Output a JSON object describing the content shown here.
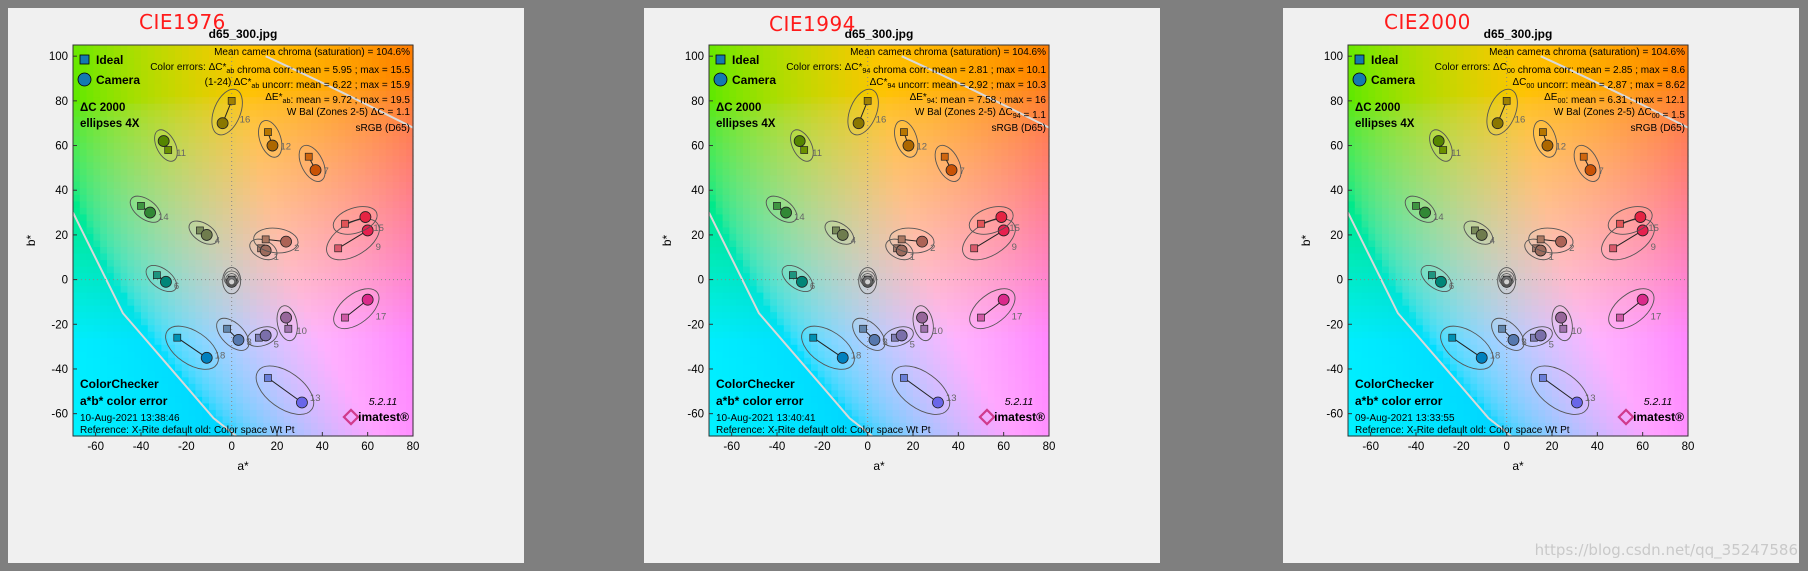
{
  "chart_data": [
    {
      "type": "scatter",
      "method_label": "CIE1976",
      "title": "d65_300.jpg",
      "xlabel": "a*",
      "ylabel": "b*",
      "xlim": [
        -70,
        80
      ],
      "ylim": [
        -70,
        105
      ],
      "xticks": [
        -60,
        -40,
        -20,
        0,
        20,
        40,
        60,
        80
      ],
      "yticks": [
        -60,
        -40,
        -20,
        0,
        20,
        40,
        60,
        80,
        100
      ],
      "legend": [
        {
          "name": "Ideal",
          "marker": "square"
        },
        {
          "name": "Camera",
          "marker": "circle"
        }
      ],
      "subtitle_lines": [
        "ΔC 2000",
        "ellipses 4X"
      ],
      "stats": [
        "Mean camera chroma (saturation) = 104.6%",
        "Color errors: ΔC*ab chroma corr: mean = 5.95 ; max = 15.5",
        "(1-24) ΔC*ab uncorr: mean = 6.22 ; max = 15.9",
        "ΔE*ab: mean = 9.72 ; max = 19.5",
        "W Bal (Zones 2-5) ΔC = 1.1",
        "sRGB (D65)"
      ],
      "bottom_lines": [
        "ColorChecker",
        "a*b* color error",
        "10-Aug-2021 13:38:46",
        "Reference: X-Rite default old: Color space Wt Pt"
      ],
      "version": "5.2.11",
      "logo": "imatest®",
      "patches": [
        {
          "id": "1",
          "ideal": [
            13,
            14
          ],
          "camera": [
            15,
            13
          ]
        },
        {
          "id": "2",
          "ideal": [
            15,
            18
          ],
          "camera": [
            24,
            17
          ]
        },
        {
          "id": "3",
          "ideal": [
            -2,
            -22
          ],
          "camera": [
            3,
            -27
          ]
        },
        {
          "id": "4",
          "ideal": [
            -14,
            22
          ],
          "camera": [
            -11,
            20
          ]
        },
        {
          "id": "5",
          "ideal": [
            12,
            -26
          ],
          "camera": [
            15,
            -25
          ]
        },
        {
          "id": "6",
          "ideal": [
            -33,
            2
          ],
          "camera": [
            -29,
            -1
          ]
        },
        {
          "id": "7",
          "ideal": [
            34,
            55
          ],
          "camera": [
            37,
            49
          ]
        },
        {
          "id": "9",
          "ideal": [
            47,
            14
          ],
          "camera": [
            60,
            22
          ]
        },
        {
          "id": "10",
          "ideal": [
            25,
            -22
          ],
          "camera": [
            24,
            -17
          ]
        },
        {
          "id": "11",
          "ideal": [
            -28,
            58
          ],
          "camera": [
            -30,
            62
          ]
        },
        {
          "id": "12",
          "ideal": [
            16,
            66
          ],
          "camera": [
            18,
            60
          ]
        },
        {
          "id": "13",
          "ideal": [
            16,
            -44
          ],
          "camera": [
            31,
            -55
          ]
        },
        {
          "id": "14",
          "ideal": [
            -40,
            33
          ],
          "camera": [
            -36,
            30
          ]
        },
        {
          "id": "15",
          "ideal": [
            50,
            25
          ],
          "camera": [
            59,
            28
          ]
        },
        {
          "id": "16",
          "ideal": [
            0,
            80
          ],
          "camera": [
            -4,
            70
          ]
        },
        {
          "id": "17",
          "ideal": [
            50,
            -17
          ],
          "camera": [
            60,
            -9
          ]
        },
        {
          "id": "18",
          "ideal": [
            -24,
            -26
          ],
          "camera": [
            -11,
            -35
          ]
        },
        {
          "id": "19-24",
          "ideal": [
            0,
            0
          ],
          "camera": [
            0,
            -1
          ]
        }
      ]
    },
    {
      "type": "scatter",
      "method_label": "CIE1994",
      "title": "d65_300.jpg",
      "xlabel": "a*",
      "ylabel": "b*",
      "xlim": [
        -70,
        80
      ],
      "ylim": [
        -70,
        105
      ],
      "xticks": [
        -60,
        -40,
        -20,
        0,
        20,
        40,
        60,
        80
      ],
      "yticks": [
        -60,
        -40,
        -20,
        0,
        20,
        40,
        60,
        80,
        100
      ],
      "legend": [
        {
          "name": "Ideal",
          "marker": "square"
        },
        {
          "name": "Camera",
          "marker": "circle"
        }
      ],
      "subtitle_lines": [
        "ΔC 2000",
        "ellipses 4X"
      ],
      "stats": [
        "Mean camera chroma (saturation) = 104.6%",
        "Color errors: ΔC*94 chroma corr: mean = 2.81 ; max = 10.1",
        "ΔC*94 uncorr: mean = 2.92 ; max = 10.3",
        "ΔE*94: mean = 7.58 ; max = 16",
        "W Bal (Zones 2-5) ΔC94 = 1.1",
        "sRGB (D65)"
      ],
      "bottom_lines": [
        "ColorChecker",
        "a*b* color error",
        "10-Aug-2021 13:40:41",
        "Reference: X-Rite default old: Color space Wt Pt"
      ],
      "version": "5.2.11",
      "logo": "imatest®",
      "patches": [
        {
          "id": "1",
          "ideal": [
            13,
            14
          ],
          "camera": [
            15,
            13
          ]
        },
        {
          "id": "2",
          "ideal": [
            15,
            18
          ],
          "camera": [
            24,
            17
          ]
        },
        {
          "id": "3",
          "ideal": [
            -2,
            -22
          ],
          "camera": [
            3,
            -27
          ]
        },
        {
          "id": "4",
          "ideal": [
            -14,
            22
          ],
          "camera": [
            -11,
            20
          ]
        },
        {
          "id": "5",
          "ideal": [
            12,
            -26
          ],
          "camera": [
            15,
            -25
          ]
        },
        {
          "id": "6",
          "ideal": [
            -33,
            2
          ],
          "camera": [
            -29,
            -1
          ]
        },
        {
          "id": "7",
          "ideal": [
            34,
            55
          ],
          "camera": [
            37,
            49
          ]
        },
        {
          "id": "9",
          "ideal": [
            47,
            14
          ],
          "camera": [
            60,
            22
          ]
        },
        {
          "id": "10",
          "ideal": [
            25,
            -22
          ],
          "camera": [
            24,
            -17
          ]
        },
        {
          "id": "11",
          "ideal": [
            -28,
            58
          ],
          "camera": [
            -30,
            62
          ]
        },
        {
          "id": "12",
          "ideal": [
            16,
            66
          ],
          "camera": [
            18,
            60
          ]
        },
        {
          "id": "13",
          "ideal": [
            16,
            -44
          ],
          "camera": [
            31,
            -55
          ]
        },
        {
          "id": "14",
          "ideal": [
            -40,
            33
          ],
          "camera": [
            -36,
            30
          ]
        },
        {
          "id": "15",
          "ideal": [
            50,
            25
          ],
          "camera": [
            59,
            28
          ]
        },
        {
          "id": "16",
          "ideal": [
            0,
            80
          ],
          "camera": [
            -4,
            70
          ]
        },
        {
          "id": "17",
          "ideal": [
            50,
            -17
          ],
          "camera": [
            60,
            -9
          ]
        },
        {
          "id": "18",
          "ideal": [
            -24,
            -26
          ],
          "camera": [
            -11,
            -35
          ]
        },
        {
          "id": "19-24",
          "ideal": [
            0,
            0
          ],
          "camera": [
            0,
            -1
          ]
        }
      ]
    },
    {
      "type": "scatter",
      "method_label": "CIE2000",
      "title": "d65_300.jpg",
      "xlabel": "a*",
      "ylabel": "b*",
      "xlim": [
        -70,
        80
      ],
      "ylim": [
        -70,
        105
      ],
      "xticks": [
        -60,
        -40,
        -20,
        0,
        20,
        40,
        60,
        80
      ],
      "yticks": [
        -60,
        -40,
        -20,
        0,
        20,
        40,
        60,
        80,
        100
      ],
      "legend": [
        {
          "name": "Ideal",
          "marker": "square"
        },
        {
          "name": "Camera",
          "marker": "circle"
        }
      ],
      "subtitle_lines": [
        "ΔC 2000",
        "ellipses 4X"
      ],
      "stats": [
        "Mean camera chroma (saturation) = 104.6%",
        "Color errors: ΔC00 chroma corr: mean = 2.85 ; max = 8.6",
        "ΔC00 uncorr: mean = 2.87 ; max = 8.62",
        "ΔE00: mean = 6.31 ; max = 12.1",
        "W Bal (Zones 2-5) ΔC00 = 1.5",
        "sRGB (D65)"
      ],
      "bottom_lines": [
        "ColorChecker",
        "a*b* color error",
        "09-Aug-2021 13:33:55",
        "Reference: X-Rite default old: Color space Wt Pt"
      ],
      "version": "5.2.11",
      "logo": "imatest®",
      "patches": [
        {
          "id": "1",
          "ideal": [
            13,
            14
          ],
          "camera": [
            15,
            13
          ]
        },
        {
          "id": "2",
          "ideal": [
            15,
            18
          ],
          "camera": [
            24,
            17
          ]
        },
        {
          "id": "3",
          "ideal": [
            -2,
            -22
          ],
          "camera": [
            3,
            -27
          ]
        },
        {
          "id": "4",
          "ideal": [
            -14,
            22
          ],
          "camera": [
            -11,
            20
          ]
        },
        {
          "id": "5",
          "ideal": [
            12,
            -26
          ],
          "camera": [
            15,
            -25
          ]
        },
        {
          "id": "6",
          "ideal": [
            -33,
            2
          ],
          "camera": [
            -29,
            -1
          ]
        },
        {
          "id": "7",
          "ideal": [
            34,
            55
          ],
          "camera": [
            37,
            49
          ]
        },
        {
          "id": "9",
          "ideal": [
            47,
            14
          ],
          "camera": [
            60,
            22
          ]
        },
        {
          "id": "10",
          "ideal": [
            25,
            -22
          ],
          "camera": [
            24,
            -17
          ]
        },
        {
          "id": "11",
          "ideal": [
            -28,
            58
          ],
          "camera": [
            -30,
            62
          ]
        },
        {
          "id": "12",
          "ideal": [
            16,
            66
          ],
          "camera": [
            18,
            60
          ]
        },
        {
          "id": "13",
          "ideal": [
            16,
            -44
          ],
          "camera": [
            31,
            -55
          ]
        },
        {
          "id": "14",
          "ideal": [
            -40,
            33
          ],
          "camera": [
            -36,
            30
          ]
        },
        {
          "id": "15",
          "ideal": [
            50,
            25
          ],
          "camera": [
            59,
            28
          ]
        },
        {
          "id": "16",
          "ideal": [
            0,
            80
          ],
          "camera": [
            -4,
            70
          ]
        },
        {
          "id": "17",
          "ideal": [
            50,
            -17
          ],
          "camera": [
            60,
            -9
          ]
        },
        {
          "id": "18",
          "ideal": [
            -24,
            -26
          ],
          "camera": [
            -11,
            -35
          ]
        },
        {
          "id": "19-24",
          "ideal": [
            0,
            0
          ],
          "camera": [
            0,
            -1
          ]
        }
      ]
    }
  ],
  "watermark": "https://blog.csdn.net/qq_35247586"
}
